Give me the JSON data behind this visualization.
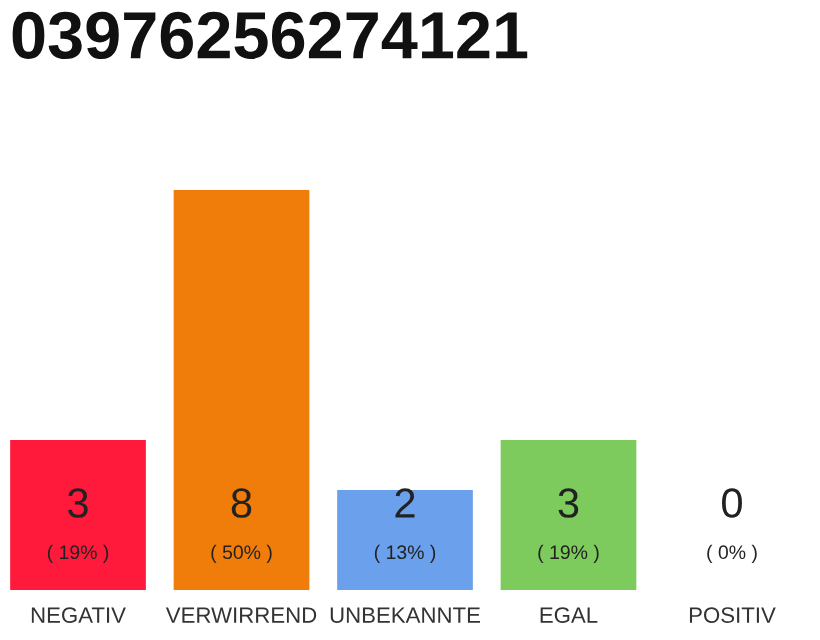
{
  "chart_data": {
    "type": "bar",
    "title": "03976256274121",
    "categories": [
      "NEGATIV",
      "VERWIRREND",
      "UNBEKANNTE",
      "EGAL",
      "POSITIV"
    ],
    "values": [
      3,
      8,
      2,
      3,
      0
    ],
    "colors": [
      "#ff1a3c",
      "#f07d0a",
      "#6aa0ec",
      "#7dcb5d",
      "#d8d8d8"
    ],
    "value_labels": [
      "3\n( 19% )",
      "8\n( 50% )",
      "2\n( 13% )",
      "3\n( 19% )",
      "0\n( 0% )"
    ],
    "ylim": [
      0,
      8
    ],
    "tick_labels": "x",
    "grid": false,
    "legend": false
  }
}
